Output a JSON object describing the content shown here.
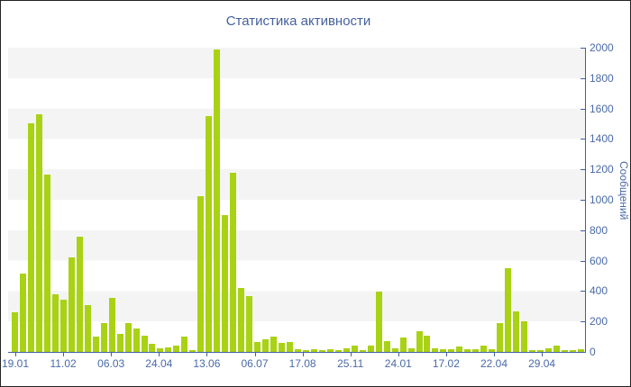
{
  "chart_data": {
    "type": "bar",
    "title": "Статистика активности",
    "xlabel": "",
    "ylabel": "Сообщений",
    "ylabel_side": "right",
    "ylim": [
      0,
      2000
    ],
    "ytick_step": 200,
    "yticks": [
      0,
      200,
      400,
      600,
      800,
      1000,
      1200,
      1400,
      1600,
      1800,
      2000
    ],
    "grid": "horizontal-bands",
    "legend": "none",
    "categories": [
      "19.01",
      "11.02",
      "06.03",
      "24.04",
      "13.06",
      "06.07",
      "17.08",
      "25.11",
      "24.01",
      "17.02",
      "22.04",
      "29.04"
    ],
    "values": [
      260,
      515,
      1505,
      1565,
      1165,
      380,
      345,
      620,
      755,
      310,
      100,
      190,
      355,
      118,
      187,
      152,
      105,
      55,
      24,
      30,
      43,
      99,
      14,
      1022,
      1552,
      1986,
      901,
      1180,
      420,
      365,
      65,
      85,
      99,
      59,
      65,
      20,
      14,
      20,
      14,
      20,
      14,
      26,
      39,
      14,
      43,
      394,
      69,
      24,
      93,
      24,
      138,
      108,
      24,
      16,
      16,
      35,
      20,
      20,
      39,
      20,
      187,
      548,
      268,
      203,
      14,
      14,
      22,
      39,
      14,
      14,
      20
    ],
    "colors": {
      "bar": "#a9d214",
      "axis": "#4060a0",
      "tick_label": "#4a6aa8",
      "title": "#44609f",
      "band": "#f4f4f4",
      "background": "#ffffff",
      "border": "#242424"
    }
  }
}
